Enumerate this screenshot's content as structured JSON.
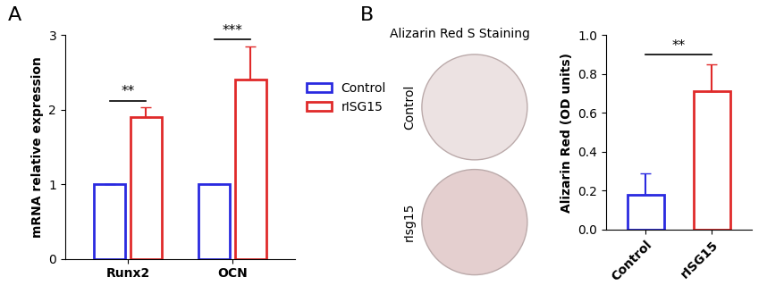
{
  "panel_labels": [
    "A",
    "B"
  ],
  "chart_data": [
    {
      "type": "bar",
      "categories": [
        "Runx2",
        "OCN"
      ],
      "y_label": "mRNA relative expression",
      "series": [
        {
          "name": "Control",
          "color": "#2a2ae0",
          "values": [
            1,
            1
          ],
          "errors": [
            0,
            0
          ]
        },
        {
          "name": "rISG15",
          "color": "#e02a2a",
          "values": [
            1.9,
            2.4
          ],
          "errors": [
            0.13,
            0.45
          ]
        }
      ],
      "ylim": [
        0,
        3
      ],
      "yticks": [
        0,
        1,
        2,
        3
      ],
      "legend": "center left",
      "annotations": [
        {
          "category": "Runx2",
          "text": "**"
        },
        {
          "category": "OCN",
          "text": "***"
        }
      ]
    },
    {
      "type": "bar",
      "categories": [
        "Control",
        "rISG15"
      ],
      "y_label": "Alizarin Red (OD units)",
      "values": [
        0.18,
        0.71
      ],
      "errors": [
        0.11,
        0.14
      ],
      "colors": [
        "#2a2ae0",
        "#e02a2a"
      ],
      "ylim": [
        0,
        1.0
      ],
      "yticks": [
        0.0,
        0.2,
        0.4,
        0.6,
        0.8,
        1.0
      ],
      "annotations": [
        {
          "text": "**"
        }
      ]
    }
  ],
  "staining": {
    "title": "Alizarin Red S Staining",
    "wells": [
      "Control",
      "rIsg15"
    ]
  }
}
